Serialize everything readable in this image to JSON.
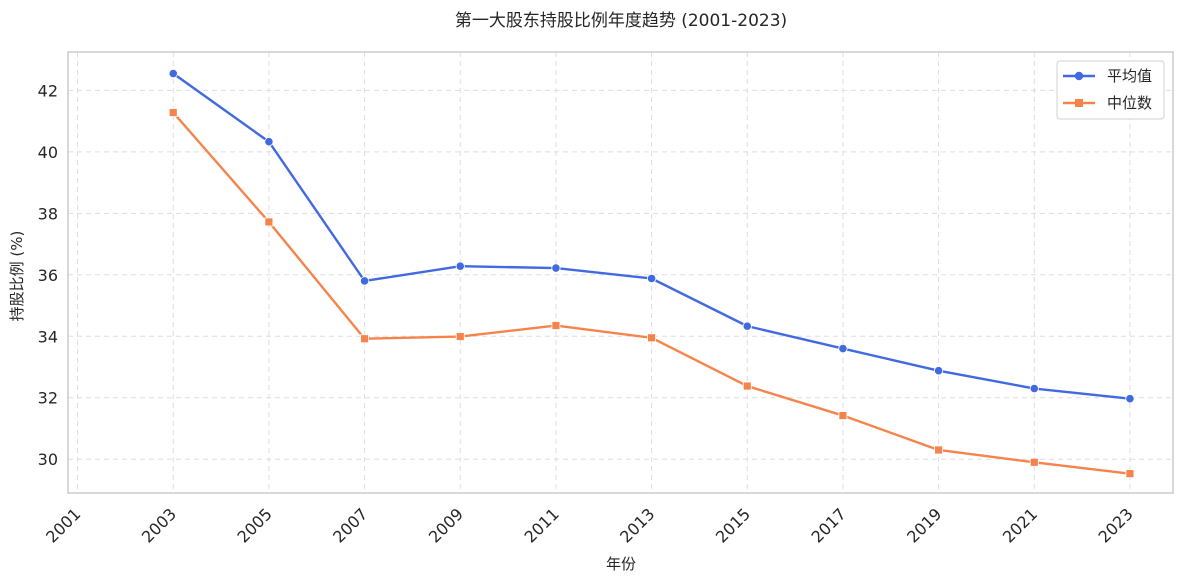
{
  "chart_data": {
    "type": "line",
    "title": "第一大股东持股比例年度趋势 (2001-2023)",
    "xlabel": "年份",
    "ylabel": "持股比例 (%)",
    "x_ticks": [
      2001,
      2003,
      2005,
      2007,
      2009,
      2011,
      2013,
      2015,
      2017,
      2019,
      2021,
      2023
    ],
    "y_ticks": [
      30,
      32,
      34,
      36,
      38,
      40,
      42
    ],
    "xlim": [
      2000.8,
      2023.9
    ],
    "ylim": [
      28.9,
      43.25
    ],
    "grid": true,
    "legend_position": "top-right",
    "series": [
      {
        "name": "平均值",
        "color": "#4169e1",
        "marker": "circle",
        "x": [
          2003,
          2005,
          2007,
          2009,
          2011,
          2013,
          2015,
          2017,
          2019,
          2021,
          2023
        ],
        "values": [
          42.55,
          40.33,
          35.8,
          36.28,
          36.22,
          35.88,
          34.33,
          33.6,
          32.88,
          32.3,
          31.97
        ]
      },
      {
        "name": "中位数",
        "color": "#f5844c",
        "marker": "square",
        "x": [
          2003,
          2005,
          2007,
          2009,
          2011,
          2013,
          2015,
          2017,
          2019,
          2021,
          2023
        ],
        "values": [
          41.28,
          37.72,
          33.92,
          33.99,
          34.35,
          33.95,
          32.38,
          31.42,
          30.3,
          29.9,
          29.53
        ]
      }
    ]
  }
}
